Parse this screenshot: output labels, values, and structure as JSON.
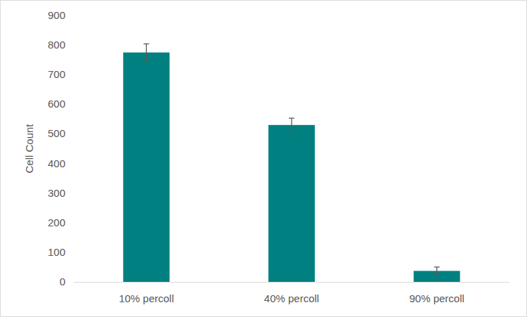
{
  "chart_data": {
    "type": "bar",
    "categories": [
      "10% percoll",
      "40% percoll",
      "90% percoll"
    ],
    "values": [
      775,
      530,
      37
    ],
    "errors": [
      29,
      23,
      13
    ],
    "color": "#008080",
    "y_label": "Cell Count",
    "ylim": [
      0,
      900
    ],
    "yticks": [
      0,
      100,
      200,
      300,
      400,
      500,
      600,
      700,
      800,
      900
    ],
    "grid": false
  }
}
